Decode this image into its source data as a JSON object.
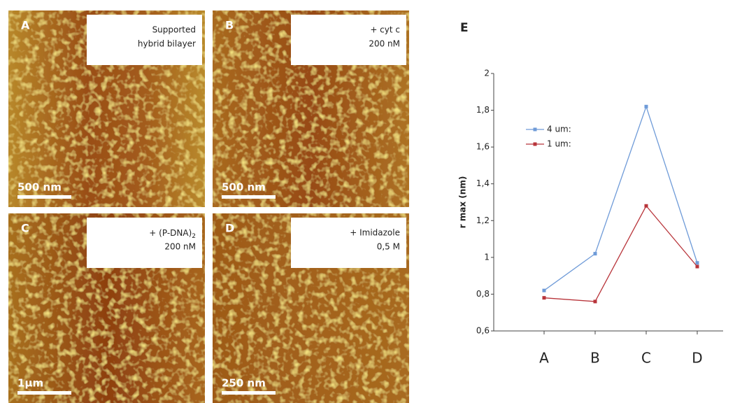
{
  "panels": [
    {
      "letter": "A",
      "text": [
        "Supported",
        "hybrid bilayer"
      ],
      "scale_bar": "500 nm"
    },
    {
      "letter": "B",
      "text": [
        "+ cyt c",
        "200 nM"
      ],
      "scale_bar": "500 nm"
    },
    {
      "letter": "C",
      "text": [
        "+ (P-DNA)",
        "200 nM"
      ],
      "subscript": "2",
      "scale_bar": "1μm"
    },
    {
      "letter": "D",
      "text": [
        "+ Imidazole",
        "0,5 M"
      ],
      "scale_bar": "250 nm"
    }
  ],
  "chart_data": {
    "type": "line",
    "panel_label": "E",
    "y_label": "r max (nm)",
    "categories": [
      "A",
      "B",
      "C",
      "D"
    ],
    "series": [
      {
        "name": "4 um:",
        "color": "#6f9bd8",
        "values": [
          0.82,
          1.02,
          1.82,
          0.97
        ]
      },
      {
        "name": "1 um:",
        "color": "#b8343a",
        "values": [
          0.78,
          0.76,
          1.28,
          0.95
        ]
      }
    ],
    "ylim": [
      0.6,
      2
    ],
    "yticks": [
      {
        "value": 0.6,
        "label": "0,6"
      },
      {
        "value": 0.8,
        "label": "0,8"
      },
      1,
      {
        "value": 1.2,
        "label": "1,2"
      },
      {
        "value": 1.4,
        "label": "1,4"
      },
      {
        "value": 1.6,
        "label": "1,6"
      },
      {
        "value": 1.8,
        "label": "1,8"
      },
      2
    ]
  }
}
